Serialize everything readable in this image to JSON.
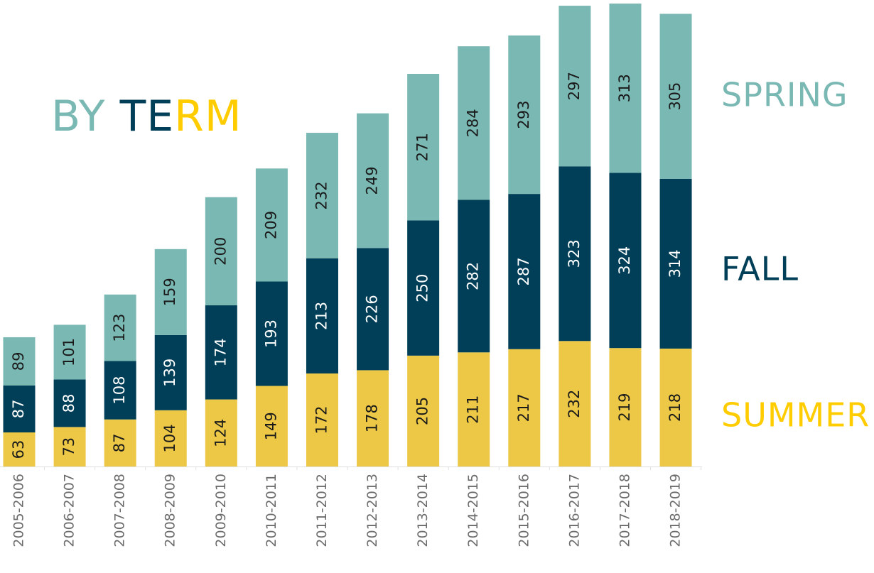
{
  "chart_data": {
    "type": "stacked_bar",
    "title": "BY TERM",
    "categories": [
      "2005-2006",
      "2006-2007",
      "2007-2008",
      "2008-2009",
      "2009-2010",
      "2010-2011",
      "2011-2012",
      "2012-2013",
      "2013-2014",
      "2014-2015",
      "2015-2016",
      "2016-2017",
      "2017-2018",
      "2018-2019"
    ],
    "series": [
      {
        "name": "SUMMER",
        "color": "#ecc846",
        "values": [
          63,
          73,
          87,
          104,
          124,
          149,
          172,
          178,
          205,
          211,
          217,
          232,
          219,
          218
        ]
      },
      {
        "name": "FALL",
        "color": "#003f57",
        "values": [
          87,
          88,
          108,
          139,
          174,
          193,
          213,
          226,
          250,
          282,
          287,
          323,
          324,
          314
        ]
      },
      {
        "name": "SPRING",
        "color": "#7ab8b3",
        "values": [
          89,
          101,
          123,
          159,
          200,
          209,
          232,
          249,
          271,
          284,
          293,
          297,
          313,
          305
        ]
      }
    ]
  }
}
